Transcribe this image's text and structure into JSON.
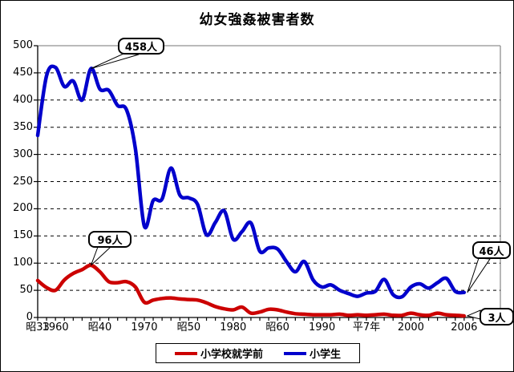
{
  "title": "幼女強姦被害者数",
  "chart_data": {
    "type": "line",
    "title": "幼女強姦被害者数",
    "smoothed": true,
    "grid": "horizontal-dashed",
    "legend_position": "bottom",
    "ylim": [
      0,
      500
    ],
    "ytick_step": 50,
    "yticks": [
      0,
      50,
      100,
      150,
      200,
      250,
      300,
      350,
      400,
      450,
      500
    ],
    "years": [
      1958,
      1959,
      1960,
      1961,
      1962,
      1963,
      1964,
      1965,
      1966,
      1967,
      1968,
      1969,
      1970,
      1971,
      1972,
      1973,
      1974,
      1975,
      1976,
      1977,
      1978,
      1979,
      1980,
      1981,
      1982,
      1983,
      1984,
      1985,
      1986,
      1987,
      1988,
      1989,
      1990,
      1991,
      1992,
      1993,
      1994,
      1995,
      1996,
      1997,
      1998,
      1999,
      2000,
      2001,
      2002,
      2003,
      2004,
      2005,
      2006
    ],
    "xticks": [
      {
        "label": "昭33",
        "year": 1958
      },
      {
        "label": "1960",
        "year": 1960
      },
      {
        "label": "昭40",
        "year": 1965
      },
      {
        "label": "1970",
        "year": 1970
      },
      {
        "label": "昭50",
        "year": 1975
      },
      {
        "label": "1980",
        "year": 1980
      },
      {
        "label": "昭60",
        "year": 1985
      },
      {
        "label": "1990",
        "year": 1990
      },
      {
        "label": "平7年",
        "year": 1995
      },
      {
        "label": "2000",
        "year": 2000
      },
      {
        "label": "2006",
        "year": 2006
      }
    ],
    "series": [
      {
        "name": "小学校就学前",
        "color": "#cc0000",
        "values": [
          68,
          55,
          50,
          69,
          81,
          88,
          96,
          84,
          66,
          64,
          66,
          56,
          28,
          32,
          35,
          36,
          34,
          33,
          32,
          27,
          20,
          16,
          14,
          19,
          8,
          10,
          15,
          14,
          10,
          7,
          6,
          5,
          5,
          5,
          6,
          4,
          5,
          4,
          5,
          6,
          4,
          4,
          8,
          5,
          4,
          8,
          5,
          4,
          3
        ]
      },
      {
        "name": "小学生",
        "color": "#0000cc",
        "values": [
          335,
          445,
          460,
          425,
          435,
          400,
          458,
          420,
          418,
          390,
          382,
          310,
          168,
          215,
          218,
          275,
          225,
          220,
          208,
          152,
          175,
          196,
          144,
          158,
          174,
          122,
          128,
          126,
          103,
          84,
          103,
          69,
          56,
          60,
          50,
          44,
          39,
          45,
          48,
          70,
          42,
          38,
          56,
          62,
          54,
          64,
          72,
          48,
          46
        ]
      }
    ],
    "annotations": [
      {
        "text": "458人",
        "series": "小学生",
        "year": 1964,
        "value": 458
      },
      {
        "text": "96人",
        "series": "小学校就学前",
        "year": 1964,
        "value": 96
      },
      {
        "text": "46人",
        "series": "小学生",
        "year": 2006,
        "value": 46
      },
      {
        "text": "3人",
        "series": "小学校就学前",
        "year": 2006,
        "value": 3
      }
    ]
  },
  "legend": {
    "items": [
      {
        "label": "小学校就学前",
        "color": "#cc0000"
      },
      {
        "label": "小学生",
        "color": "#0000cc"
      }
    ]
  }
}
